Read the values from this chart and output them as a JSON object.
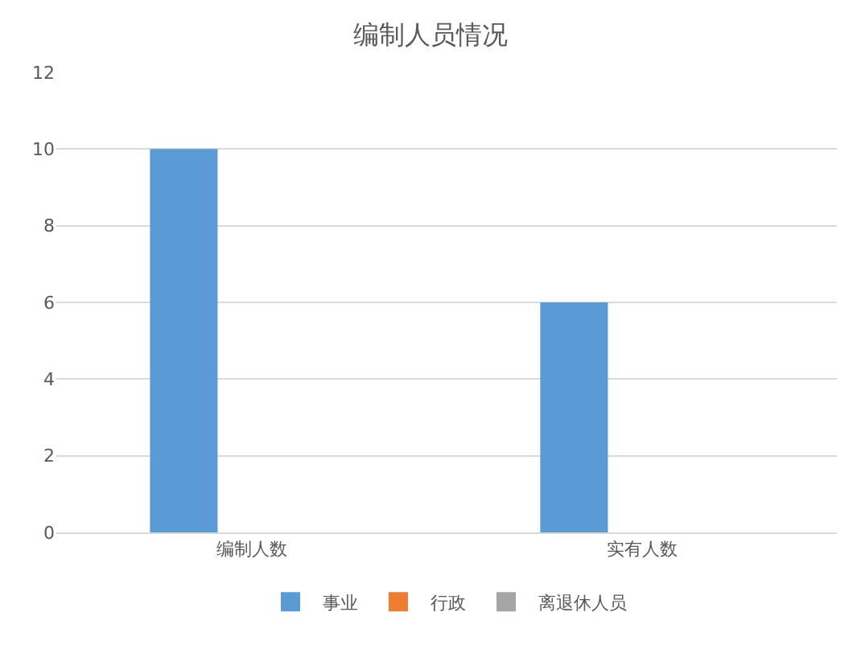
{
  "chart_data": {
    "type": "bar",
    "title": "编制人员情况",
    "categories": [
      "编制人数",
      "实有人数"
    ],
    "series": [
      {
        "name": "事业",
        "color": "#5b9bd5",
        "values": [
          10,
          6
        ]
      },
      {
        "name": "行政",
        "color": "#ed7d31",
        "values": [
          0,
          0
        ]
      },
      {
        "name": "离退休人员",
        "color": "#a5a5a5",
        "values": [
          0,
          0
        ]
      }
    ],
    "ylim": [
      0,
      12
    ],
    "yticks": [
      0,
      2,
      4,
      6,
      8,
      10,
      12
    ],
    "grid": "y",
    "legend": "bottom"
  }
}
